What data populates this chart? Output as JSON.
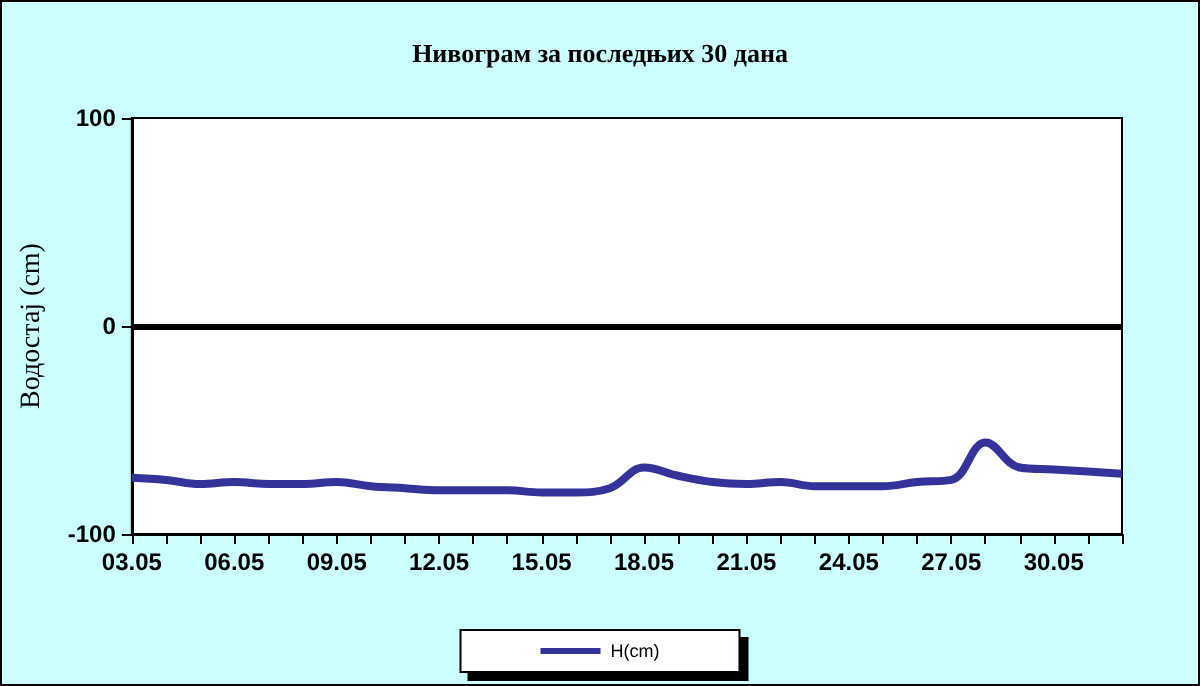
{
  "chart_data": {
    "type": "line",
    "title": "Нивограм за последњих 30 дана",
    "ylabel": "Водостај (cm)",
    "categories": [
      "03.05",
      null,
      null,
      "06.05",
      null,
      null,
      "09.05",
      null,
      null,
      "12.05",
      null,
      null,
      "15.05",
      null,
      null,
      "18.05",
      null,
      null,
      "21.05",
      null,
      null,
      "24.05",
      null,
      null,
      "27.05",
      null,
      null,
      "30.05",
      null,
      null
    ],
    "series": [
      {
        "name": "H(cm)",
        "color": "#333399",
        "values": [
          -73,
          -74,
          -76,
          -75,
          -76,
          -76,
          -75,
          -77,
          -78,
          -79,
          -79,
          -79,
          -80,
          -80,
          -78,
          -68,
          -72,
          -75,
          -76,
          -75,
          -77,
          -77,
          -77,
          -75,
          -74,
          -56,
          -68,
          -69,
          -70,
          -71
        ]
      }
    ],
    "ylim": [
      -100,
      100
    ],
    "yticks": [
      -100,
      0,
      100
    ],
    "grid": false,
    "legend": "bottom",
    "marker": "none",
    "line_style": "solid",
    "ref_lines": [
      {
        "axis": "y",
        "value": 0,
        "color": "#000000",
        "line_style": "solid"
      }
    ]
  }
}
